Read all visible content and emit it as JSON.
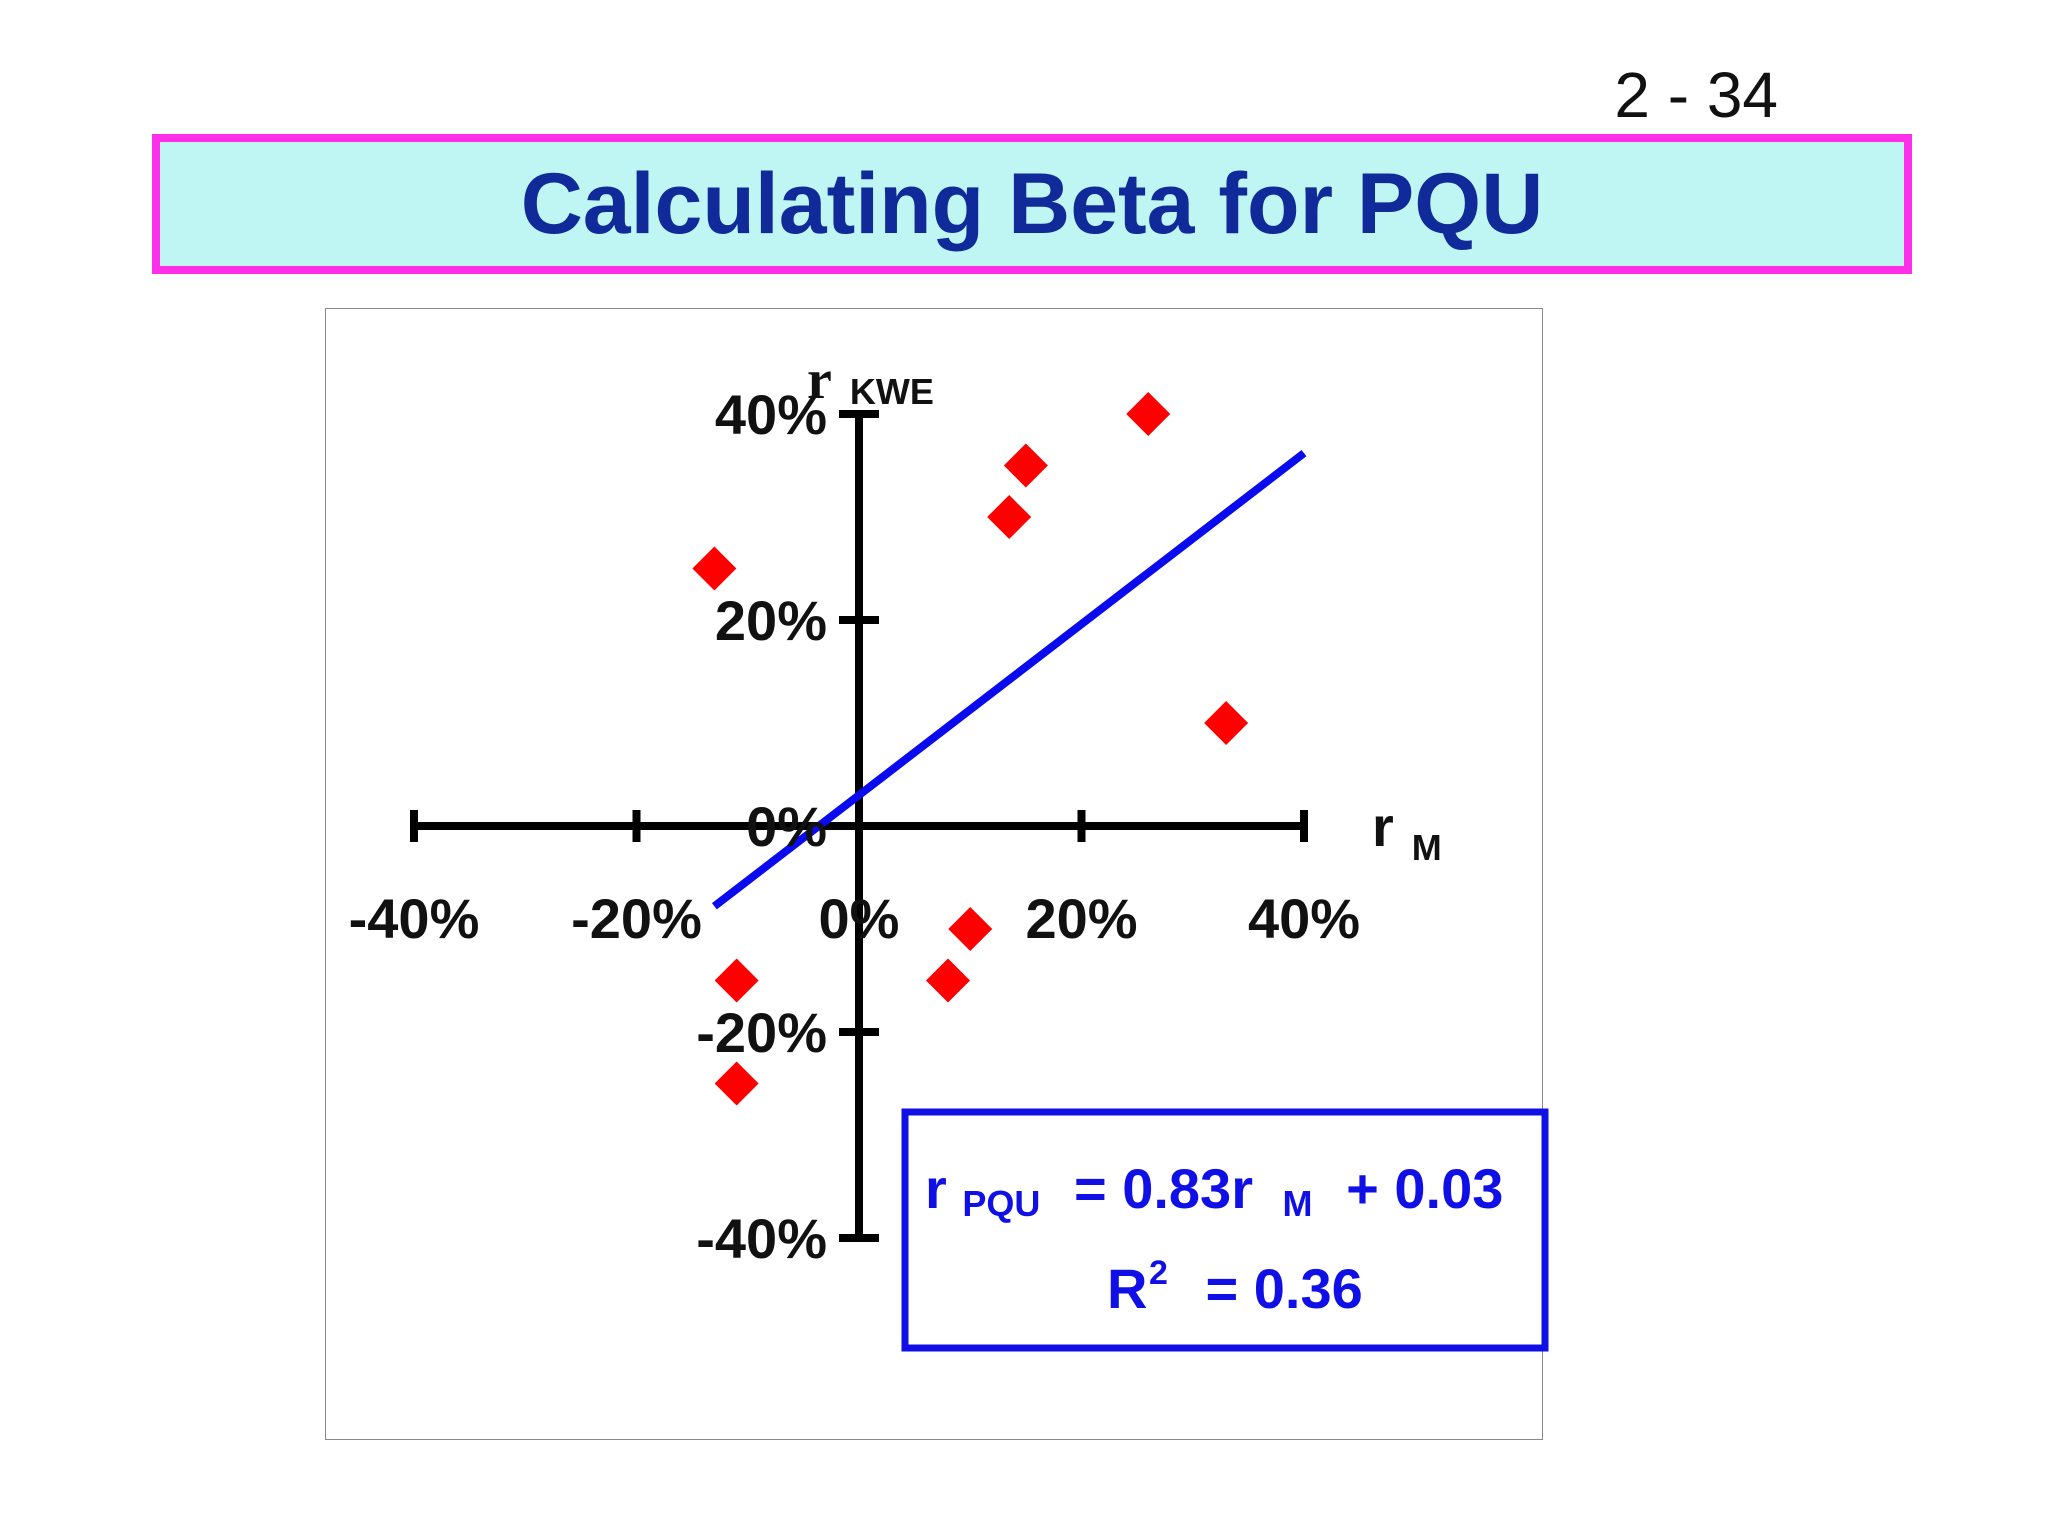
{
  "slide": {
    "number": "2 - 34",
    "title": "Calculating Beta for PQU"
  },
  "colors": {
    "title_text": "#102a9a",
    "title_fill": "#bff6f3",
    "title_border": "#ff2ee8",
    "points": "#ff0000",
    "regression_line": "#0a0aee",
    "equation_text": "#1010e6",
    "axes": "#000000"
  },
  "equation": {
    "r": "r",
    "sub_pqu": "PQU",
    "mid": "= 0.83r",
    "sub_m": "M",
    "tail": "+ 0.03",
    "r2": "R",
    "r2_sup": "2",
    "r2_tail": "= 0.36"
  },
  "chart_data": {
    "type": "scatter",
    "x_axis": {
      "label": "r",
      "label_sub": "M",
      "ticks": [
        "-40%",
        "-20%",
        "0%",
        "20%",
        "40%"
      ],
      "range": [
        -40,
        40
      ]
    },
    "y_axis": {
      "label": "r",
      "label_sub": "KWE",
      "ticks": [
        "40%",
        "20%",
        "0%",
        "-20%",
        "-40%"
      ],
      "range": [
        -40,
        40
      ]
    },
    "points": [
      {
        "x": 26,
        "y": 40
      },
      {
        "x": 15,
        "y": 35
      },
      {
        "x": 13.5,
        "y": 30
      },
      {
        "x": -13,
        "y": 25
      },
      {
        "x": 33,
        "y": 10
      },
      {
        "x": 10,
        "y": -10
      },
      {
        "x": -11,
        "y": -15
      },
      {
        "x": 8,
        "y": -15
      },
      {
        "x": -11,
        "y": -25
      }
    ],
    "regression": {
      "slope": 0.83,
      "intercept": 3,
      "x_range": [
        -13,
        40
      ]
    },
    "grid": false
  }
}
